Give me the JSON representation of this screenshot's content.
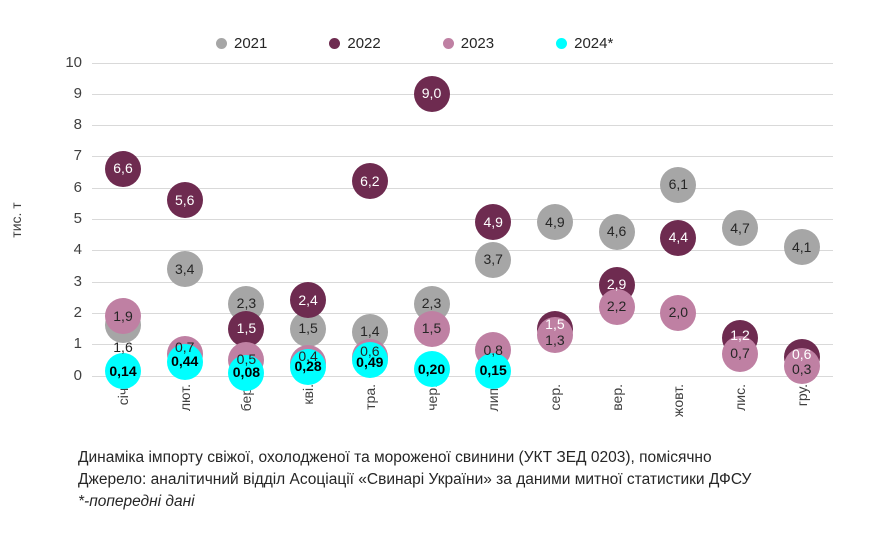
{
  "caption": {
    "line1": "Динаміка імпорту свіжої, охолодженої та мороженої свинини (УКТ ЗЕД 0203), помісячно",
    "line2": "Джерело: аналітичний відділ Асоціації «Свинарі України» за даними митної статистики ДФСУ",
    "line3": "*-попередні дані"
  },
  "chart_data": {
    "type": "scatter",
    "subtype": "bubble",
    "title": "",
    "xlabel": "",
    "ylabel": "тис. т",
    "ylim": [
      0,
      10
    ],
    "ytick_step": 1,
    "grid": true,
    "legend_position": "top",
    "gridline_color": "#d9d9d9",
    "axis_text_color": "#404040",
    "decimal_separator": ",",
    "categories": [
      "січ.",
      "лют.",
      "бер.",
      "кві.",
      "тра.",
      "чер.",
      "лип.",
      "сер.",
      "вер.",
      "жовт.",
      "лис.",
      "гру."
    ],
    "series": [
      {
        "name": "2021",
        "color": "#a6a6a6",
        "label_color": "#262626",
        "bold_labels": false,
        "values": [
          1.6,
          3.4,
          2.3,
          1.5,
          1.4,
          2.3,
          3.7,
          4.9,
          4.6,
          6.1,
          4.7,
          4.1
        ],
        "labels": [
          "1,6",
          "3,4",
          "2,3",
          "1,5",
          "1,4",
          "2,3",
          "3,7",
          "4,9",
          "4,6",
          "6,1",
          "4,7",
          "4,1"
        ],
        "label_dy": [
          22,
          0,
          0,
          0,
          0,
          0,
          0,
          0,
          0,
          0,
          0,
          0
        ]
      },
      {
        "name": "2022",
        "color": "#6e2b50",
        "label_color": "#ffffff",
        "bold_labels": false,
        "values": [
          6.6,
          5.6,
          1.5,
          2.4,
          6.2,
          9.0,
          4.9,
          1.5,
          2.9,
          4.4,
          1.2,
          0.6
        ],
        "labels": [
          "6,6",
          "5,6",
          "1,5",
          "2,4",
          "6,2",
          "9,0",
          "4,9",
          "1,5",
          "2,9",
          "4,4",
          "1,2",
          "0,6"
        ],
        "label_dy": [
          0,
          0,
          0,
          0,
          0,
          0,
          0,
          -4,
          0,
          0,
          -2,
          -2
        ]
      },
      {
        "name": "2023",
        "color": "#bf80a3",
        "label_color": "#262626",
        "bold_labels": false,
        "values": [
          1.9,
          0.7,
          0.5,
          0.4,
          0.6,
          1.5,
          0.8,
          1.3,
          2.2,
          2.0,
          0.7,
          0.3
        ],
        "labels": [
          "1,9",
          "0,7",
          "0,5",
          "0,4",
          "0,6",
          "1,5",
          "0,8",
          "1,3",
          "2,2",
          "2,0",
          "0,7",
          "0,3"
        ],
        "label_dy": [
          0,
          -6,
          0,
          -6,
          -5,
          0,
          0,
          6,
          0,
          0,
          0,
          3
        ]
      },
      {
        "name": "2024*",
        "color": "#00ffff",
        "label_color": "#000000",
        "bold_labels": true,
        "values": [
          0.14,
          0.44,
          0.08,
          0.28,
          0.49,
          0.2,
          0.15,
          null,
          null,
          null,
          null,
          null
        ],
        "labels": [
          "0,14",
          "0,44",
          "0,08",
          "0,28",
          "0,49",
          "0,20",
          "0,15"
        ],
        "label_dy": [
          0,
          0,
          0,
          0,
          2,
          0,
          0
        ]
      }
    ]
  }
}
